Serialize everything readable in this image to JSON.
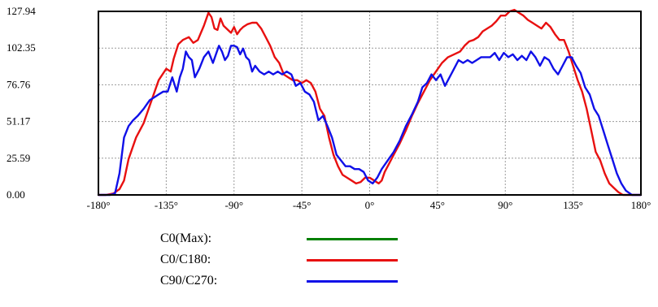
{
  "chart_data": {
    "type": "line",
    "title": "",
    "xlabel": "",
    "ylabel": "",
    "xlim": [
      -180,
      180
    ],
    "ylim": [
      0,
      127.94
    ],
    "grid": true,
    "legend_position": "bottom",
    "y_ticks": [
      "0.00",
      "25.59",
      "51.17",
      "76.76",
      "102.35",
      "127.94"
    ],
    "y_tick_values": [
      0,
      25.59,
      51.17,
      76.76,
      102.35,
      127.94
    ],
    "x_ticks": [
      "-180°",
      "-135°",
      "-90°",
      "-45°",
      "0°",
      "45°",
      "90°",
      "135°",
      "180°"
    ],
    "x_tick_values": [
      -180,
      -135,
      -90,
      -45,
      0,
      45,
      90,
      135,
      180
    ],
    "series": [
      {
        "name": "C0(Max):",
        "color": "#008000",
        "x": [],
        "values": []
      },
      {
        "name": "C0/C180:",
        "color": "#e81010",
        "x": [
          -180,
          -175,
          -170,
          -166,
          -163,
          -160,
          -155,
          -150,
          -145,
          -140,
          -135,
          -132,
          -130,
          -127,
          -124,
          -120,
          -117,
          -114,
          -110,
          -107,
          -105,
          -103,
          -101,
          -99,
          -97,
          -94,
          -92,
          -90,
          -88,
          -86,
          -84,
          -81,
          -78,
          -75,
          -72,
          -69,
          -66,
          -63,
          -60,
          -57,
          -54,
          -51,
          -48,
          -45,
          -42,
          -39,
          -36,
          -33,
          -30,
          -27,
          -24,
          -21,
          -18,
          -15,
          -12,
          -9,
          -6,
          -3,
          0,
          3,
          6,
          8,
          10,
          13,
          16,
          20,
          24,
          28,
          32,
          36,
          40,
          44,
          48,
          52,
          56,
          60,
          63,
          66,
          69,
          72,
          75,
          78,
          81,
          84,
          87,
          90,
          93,
          96,
          99,
          102,
          105,
          108,
          111,
          114,
          117,
          120,
          123,
          126,
          129,
          132,
          135,
          138,
          141,
          144,
          147,
          150,
          153,
          156,
          159,
          162,
          165,
          168,
          172,
          176,
          180
        ],
        "values": [
          0,
          0,
          1,
          4,
          10,
          25,
          40,
          50,
          65,
          80,
          88,
          86,
          95,
          105,
          108,
          110,
          106,
          108,
          118,
          127,
          124,
          116,
          115,
          123,
          118,
          115,
          113,
          117,
          112,
          115,
          117,
          119,
          120,
          120,
          116,
          110,
          104,
          96,
          92,
          84,
          82,
          80,
          80,
          78,
          80,
          78,
          72,
          60,
          55,
          40,
          28,
          20,
          14,
          12,
          10,
          8,
          9,
          12,
          12,
          10,
          8,
          10,
          16,
          22,
          28,
          36,
          45,
          55,
          64,
          72,
          80,
          86,
          92,
          96,
          98,
          100,
          104,
          107,
          108,
          110,
          114,
          116,
          118,
          121,
          125,
          125,
          128,
          129,
          127,
          125,
          122,
          120,
          118,
          116,
          120,
          117,
          112,
          108,
          108,
          100,
          90,
          80,
          72,
          60,
          45,
          30,
          24,
          15,
          8,
          5,
          2,
          0,
          0,
          0,
          0
        ]
      },
      {
        "name": "C90/C270:",
        "color": "#1010e8",
        "x": [
          -180,
          -175,
          -172,
          -169,
          -166,
          -163,
          -160,
          -157,
          -154,
          -150,
          -146,
          -143,
          -140,
          -137,
          -134,
          -131,
          -128,
          -126,
          -124,
          -122,
          -120,
          -118,
          -116,
          -113,
          -110,
          -107,
          -104,
          -102,
          -100,
          -98,
          -96,
          -94,
          -92,
          -90,
          -88,
          -86,
          -84,
          -82,
          -80,
          -78,
          -76,
          -73,
          -70,
          -67,
          -64,
          -61,
          -58,
          -55,
          -52,
          -49,
          -46,
          -43,
          -40,
          -37,
          -34,
          -31,
          -28,
          -25,
          -22,
          -19,
          -16,
          -13,
          -10,
          -7,
          -4,
          -1,
          2,
          5,
          8,
          12,
          16,
          20,
          24,
          28,
          32,
          35,
          38,
          41,
          44,
          47,
          50,
          53,
          56,
          59,
          62,
          65,
          68,
          71,
          74,
          77,
          80,
          83,
          86,
          89,
          92,
          95,
          98,
          101,
          104,
          107,
          110,
          113,
          116,
          119,
          122,
          125,
          128,
          131,
          134,
          137,
          140,
          143,
          146,
          149,
          152,
          155,
          158,
          161,
          164,
          167,
          170,
          174,
          180
        ],
        "values": [
          0,
          0,
          0,
          1,
          15,
          40,
          48,
          52,
          55,
          60,
          66,
          68,
          70,
          72,
          72,
          82,
          72,
          82,
          88,
          100,
          96,
          94,
          82,
          88,
          96,
          100,
          92,
          98,
          104,
          100,
          94,
          97,
          104,
          104,
          103,
          98,
          102,
          96,
          94,
          86,
          90,
          86,
          84,
          86,
          84,
          86,
          84,
          86,
          84,
          76,
          78,
          72,
          70,
          65,
          52,
          55,
          48,
          40,
          28,
          24,
          20,
          20,
          18,
          18,
          16,
          10,
          8,
          12,
          18,
          24,
          30,
          38,
          48,
          56,
          65,
          75,
          78,
          84,
          80,
          84,
          76,
          82,
          88,
          94,
          92,
          94,
          92,
          94,
          96,
          96,
          96,
          99,
          94,
          99,
          96,
          98,
          94,
          97,
          94,
          100,
          96,
          90,
          96,
          94,
          88,
          84,
          90,
          96,
          96,
          90,
          85,
          75,
          70,
          60,
          55,
          45,
          35,
          25,
          15,
          8,
          3,
          0,
          0
        ]
      }
    ]
  }
}
